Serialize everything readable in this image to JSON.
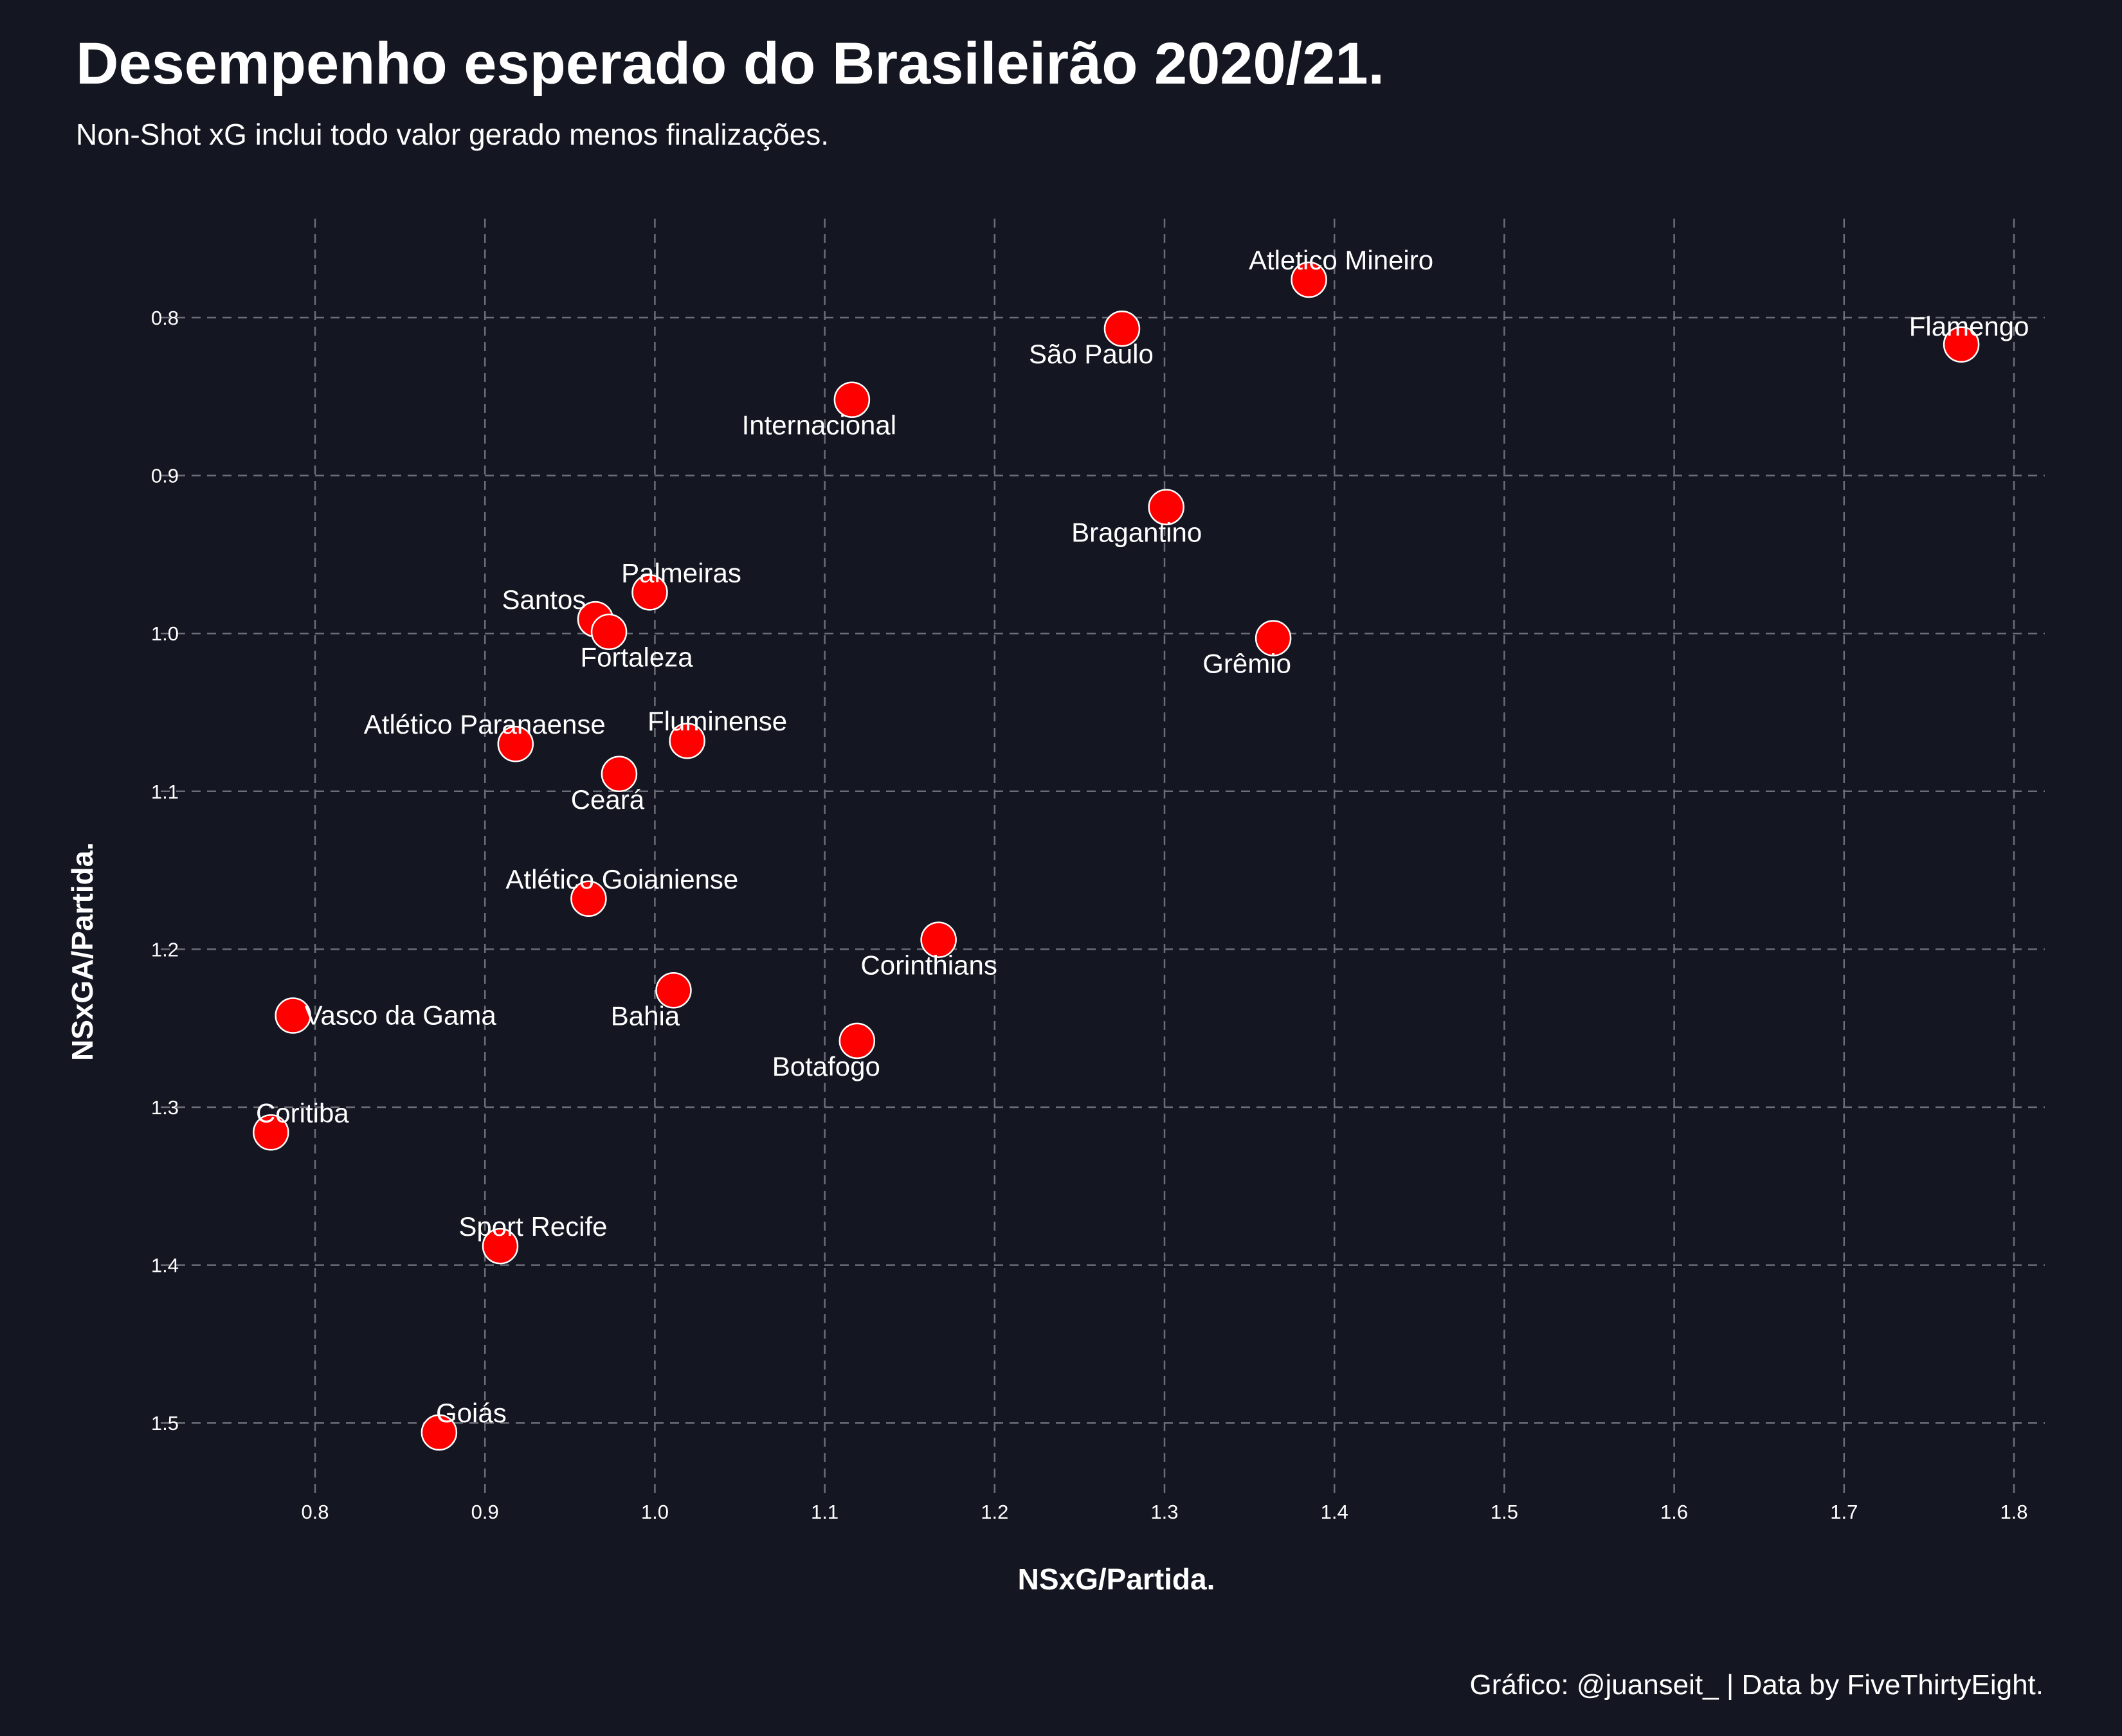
{
  "chart_data": {
    "type": "scatter",
    "title": "Desempenho esperado do Brasileirão 2020/21.",
    "subtitle": "Non-Shot xG inclui todo valor gerado menos finalizações.",
    "caption": "Gráfico: @juanseit_ | Data by FiveThirtyEight.",
    "xlabel": "NSxG/Partida.",
    "ylabel": "NSxGA/Partida.",
    "xlim": [
      0.74,
      1.82
    ],
    "ylim": [
      1.545,
      0.74
    ],
    "y_reversed": true,
    "grid": true,
    "x_ticks": [
      "0.8",
      "0.9",
      "1.0",
      "1.1",
      "1.2",
      "1.3",
      "1.4",
      "1.5",
      "1.6",
      "1.7",
      "1.8"
    ],
    "y_ticks": [
      "0.8",
      "0.9",
      "1.0",
      "1.1",
      "1.2",
      "1.3",
      "1.4",
      "1.5"
    ],
    "colors": {
      "point": "#ff0000",
      "point_edge": "#ffffff",
      "background": "#141722",
      "grid": "#6b6e76"
    },
    "points": [
      {
        "team": "Flamengo",
        "x": 1.769,
        "y": 0.817
      },
      {
        "team": "Atletico Mineiro",
        "x": 1.385,
        "y": 0.776
      },
      {
        "team": "São Paulo",
        "x": 1.275,
        "y": 0.807
      },
      {
        "team": "Internacional",
        "x": 1.116,
        "y": 0.852
      },
      {
        "team": "Bragantino",
        "x": 1.301,
        "y": 0.92
      },
      {
        "team": "Grêmio",
        "x": 1.364,
        "y": 1.003
      },
      {
        "team": "Palmeiras",
        "x": 0.997,
        "y": 0.974
      },
      {
        "team": "Santos",
        "x": 0.965,
        "y": 0.991
      },
      {
        "team": "Fortaleza",
        "x": 0.973,
        "y": 0.999
      },
      {
        "team": "Atlético Paranaense",
        "x": 0.918,
        "y": 1.07
      },
      {
        "team": "Fluminense",
        "x": 1.019,
        "y": 1.068
      },
      {
        "team": "Ceará",
        "x": 0.979,
        "y": 1.089
      },
      {
        "team": "Atlético Goianiense",
        "x": 0.961,
        "y": 1.168
      },
      {
        "team": "Corinthians",
        "x": 1.167,
        "y": 1.194
      },
      {
        "team": "Bahia",
        "x": 1.011,
        "y": 1.226
      },
      {
        "team": "Botafogo",
        "x": 1.119,
        "y": 1.258
      },
      {
        "team": "Vasco da Gama",
        "x": 0.787,
        "y": 1.242
      },
      {
        "team": "Coritiba",
        "x": 0.774,
        "y": 1.316
      },
      {
        "team": "Sport Recife",
        "x": 0.909,
        "y": 1.388
      },
      {
        "team": "Goiás",
        "x": 0.873,
        "y": 1.506
      }
    ]
  }
}
